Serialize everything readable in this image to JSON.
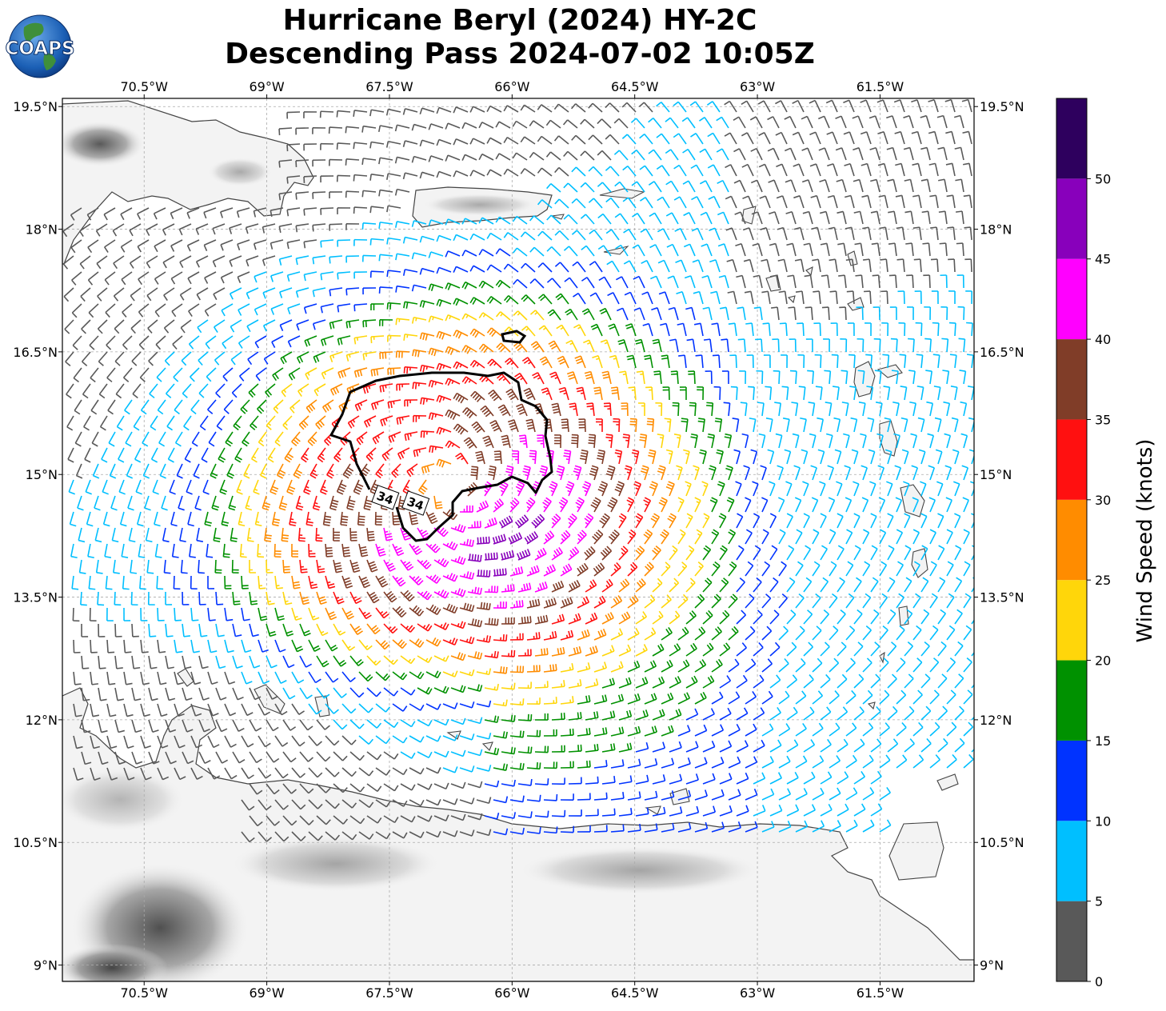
{
  "title_line1": "Hurricane Beryl (2024) HY-2C",
  "title_line2": "Descending Pass 2024-07-02 10:05Z",
  "logo_text": "COAPS",
  "colorbar": {
    "label": "Wind Speed (knots)",
    "ticks": [
      "0",
      "5",
      "10",
      "15",
      "20",
      "25",
      "30",
      "35",
      "40",
      "45",
      "50"
    ],
    "bins": [
      {
        "min": 0,
        "max": 5,
        "color": "#595959"
      },
      {
        "min": 5,
        "max": 10,
        "color": "#00bfff"
      },
      {
        "min": 10,
        "max": 15,
        "color": "#0033ff"
      },
      {
        "min": 15,
        "max": 20,
        "color": "#009100"
      },
      {
        "min": 20,
        "max": 25,
        "color": "#ffd60a"
      },
      {
        "min": 25,
        "max": 30,
        "color": "#ff8c00"
      },
      {
        "min": 30,
        "max": 35,
        "color": "#ff1010"
      },
      {
        "min": 35,
        "max": 40,
        "color": "#803d28"
      },
      {
        "min": 40,
        "max": 45,
        "color": "#ff00ff"
      },
      {
        "min": 45,
        "max": 50,
        "color": "#8800bb"
      },
      {
        "min": 50,
        "max": 55,
        "color": "#2e005e"
      }
    ]
  },
  "map": {
    "lon_range": [
      -71.5,
      -60.35
    ],
    "lat_range": [
      8.8,
      19.6
    ],
    "lon_ticks": [
      {
        "lon": -70.5,
        "label": "70.5°W"
      },
      {
        "lon": -69,
        "label": "69°W"
      },
      {
        "lon": -67.5,
        "label": "67.5°W"
      },
      {
        "lon": -66,
        "label": "66°W"
      },
      {
        "lon": -64.5,
        "label": "64.5°W"
      },
      {
        "lon": -63,
        "label": "63°W"
      },
      {
        "lon": -61.5,
        "label": "61.5°W"
      }
    ],
    "lat_ticks": [
      {
        "lat": 19.5,
        "label": "19.5°N"
      },
      {
        "lat": 18,
        "label": "18°N"
      },
      {
        "lat": 16.5,
        "label": "16.5°N"
      },
      {
        "lat": 15,
        "label": "15°N"
      },
      {
        "lat": 13.5,
        "label": "13.5°N"
      },
      {
        "lat": 12,
        "label": "12°N"
      },
      {
        "lat": 10.5,
        "label": "10.5°N"
      },
      {
        "lat": 9,
        "label": "9°N"
      }
    ],
    "grid": true,
    "storm_center": {
      "lon": -66.75,
      "lat": 14.85
    },
    "contour_label": "34",
    "contour_labels": [
      {
        "lon": -67.55,
        "lat": 14.72
      },
      {
        "lon": -67.18,
        "lat": 14.65
      }
    ]
  }
}
